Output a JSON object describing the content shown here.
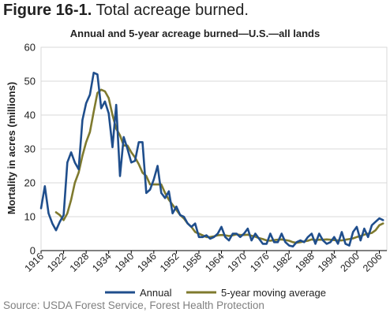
{
  "figure_title": {
    "number": "Figure 16-1.",
    "text": "Total acreage burned."
  },
  "source": "Source: USDA Forest Service, Forest Health Protection",
  "colors": {
    "annual": "#1f4e8c",
    "moving_average": "#7f7a2e",
    "grid": "#d9d9d9",
    "axis": "#000000"
  },
  "chart_data": {
    "type": "line",
    "title": "Annual and 5-year acreage burned—U.S.—all lands",
    "xlabel": "",
    "ylabel": "Mortality in acres (millions)",
    "xlim": [
      1916,
      2008
    ],
    "ylim": [
      0,
      60
    ],
    "yticks": [
      0,
      10,
      20,
      30,
      40,
      50,
      60
    ],
    "xticks": [
      1916,
      1922,
      1928,
      1934,
      1940,
      1946,
      1952,
      1958,
      1964,
      1970,
      1976,
      1982,
      1988,
      1994,
      2000,
      2006
    ],
    "grid": true,
    "legend_position": "bottom",
    "series": [
      {
        "name": "Annual",
        "x": [
          1916,
          1917,
          1918,
          1919,
          1920,
          1921,
          1922,
          1923,
          1924,
          1925,
          1926,
          1927,
          1928,
          1929,
          1930,
          1931,
          1932,
          1933,
          1934,
          1935,
          1936,
          1937,
          1938,
          1939,
          1940,
          1941,
          1942,
          1943,
          1944,
          1945,
          1946,
          1947,
          1948,
          1949,
          1950,
          1951,
          1952,
          1953,
          1954,
          1955,
          1956,
          1957,
          1958,
          1959,
          1960,
          1961,
          1962,
          1963,
          1964,
          1965,
          1966,
          1967,
          1968,
          1969,
          1970,
          1971,
          1972,
          1973,
          1974,
          1975,
          1976,
          1977,
          1978,
          1979,
          1980,
          1981,
          1982,
          1983,
          1984,
          1985,
          1986,
          1987,
          1988,
          1989,
          1990,
          1991,
          1992,
          1993,
          1994,
          1995,
          1996,
          1997,
          1998,
          1999,
          2000,
          2001,
          2002,
          2003,
          2004,
          2005,
          2006,
          2007
        ],
        "values": [
          12.5,
          19,
          11,
          8,
          6,
          8.5,
          10.5,
          26,
          29,
          26,
          24,
          38.5,
          43.5,
          46,
          52.5,
          52,
          42,
          44,
          40.5,
          30.5,
          43,
          22,
          33.5,
          30,
          26,
          26.5,
          32,
          32,
          17,
          18,
          21,
          25,
          17,
          15.5,
          17.5,
          11,
          13,
          10.5,
          10,
          8,
          7,
          8,
          4,
          4,
          4.5,
          3.5,
          4,
          5,
          7,
          4,
          3,
          5,
          5,
          4,
          5,
          6.5,
          3,
          5,
          3.5,
          2,
          2,
          5,
          2.5,
          2.5,
          5,
          2.5,
          1.5,
          1.2,
          2.5,
          3,
          2.5,
          4,
          5,
          2,
          5,
          3,
          2,
          2.5,
          4,
          2,
          5.5,
          2,
          1.5,
          5.5,
          7,
          3,
          6.5,
          4,
          7.5,
          8.5,
          9.5,
          9
        ]
      },
      {
        "name": "5-year moving average",
        "x": [
          1920,
          1921,
          1922,
          1923,
          1924,
          1925,
          1926,
          1927,
          1928,
          1929,
          1930,
          1931,
          1932,
          1933,
          1934,
          1935,
          1936,
          1937,
          1938,
          1939,
          1940,
          1941,
          1942,
          1943,
          1944,
          1945,
          1946,
          1947,
          1948,
          1949,
          1950,
          1951,
          1952,
          1953,
          1954,
          1955,
          1956,
          1957,
          1958,
          1959,
          1960,
          1961,
          1962,
          1963,
          1964,
          1965,
          1966,
          1967,
          1968,
          1969,
          1970,
          1971,
          1972,
          1973,
          1974,
          1975,
          1976,
          1977,
          1978,
          1979,
          1980,
          1981,
          1982,
          1983,
          1984,
          1985,
          1986,
          1987,
          1988,
          1989,
          1990,
          1991,
          1992,
          1993,
          1994,
          1995,
          1996,
          1997,
          1998,
          1999,
          2000,
          2001,
          2002,
          2003,
          2004,
          2005,
          2006,
          2007
        ],
        "values": [
          11.3,
          10.5,
          9,
          11,
          15,
          20,
          23,
          28,
          32,
          35,
          41,
          46.5,
          47.5,
          47,
          45,
          40,
          36,
          34,
          31,
          31,
          29,
          27.5,
          25.5,
          23,
          22,
          19.5,
          19.5,
          19.5,
          19.5,
          17,
          15,
          13.5,
          12,
          10.5,
          9.5,
          8,
          7,
          5.5,
          5,
          4.5,
          4,
          4,
          4.2,
          4.5,
          4.6,
          4.5,
          4.3,
          4.5,
          4.8,
          4.6,
          4.6,
          4.7,
          4.4,
          4.1,
          3.7,
          3.4,
          3,
          2.9,
          3.1,
          3.2,
          3.3,
          3.1,
          2.9,
          2.5,
          2.3,
          2.5,
          2.7,
          2.9,
          3.3,
          3.1,
          3.2,
          3.2,
          3.3,
          3.2,
          3.1,
          3,
          3,
          3.2,
          3.4,
          3.6,
          4,
          4.3,
          4.7,
          5,
          5.2,
          6,
          7.5,
          8
        ]
      }
    ]
  }
}
